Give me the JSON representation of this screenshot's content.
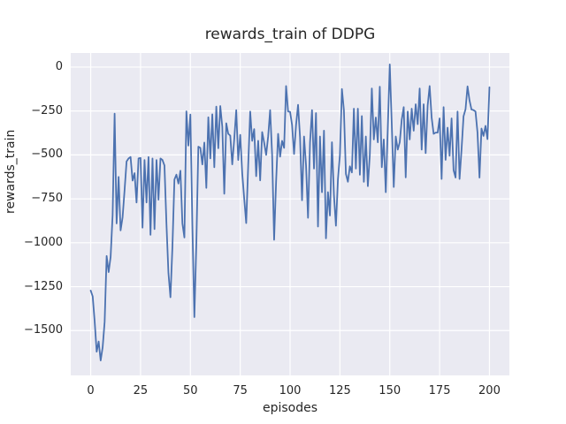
{
  "chart_data": {
    "type": "line",
    "title": "rewards_train of DDPG",
    "xlabel": "episodes",
    "ylabel": "rewards_train",
    "x_start": 0,
    "x_step": 1,
    "xlim": [
      -10,
      210
    ],
    "ylim": [
      -1755,
      80
    ],
    "xticks": [
      0,
      25,
      50,
      75,
      100,
      125,
      150,
      175,
      200
    ],
    "yticks": [
      0,
      -250,
      -500,
      -750,
      -1000,
      -1250,
      -1500
    ],
    "grid": true,
    "legend": "none",
    "style": {
      "line_color": "#4C72B0",
      "plot_bg": "#EAEAF2",
      "grid_color": "#FFFFFF",
      "text_color": "#262626",
      "fig_bg": "#FFFFFF"
    },
    "series": [
      {
        "name": "rewards_train",
        "color": "#4C72B0",
        "values": [
          -1272,
          -1305,
          -1448,
          -1620,
          -1562,
          -1670,
          -1595,
          -1450,
          -1075,
          -1167,
          -1080,
          -842,
          -265,
          -890,
          -625,
          -930,
          -855,
          -700,
          -537,
          -520,
          -512,
          -646,
          -604,
          -771,
          -520,
          -517,
          -914,
          -529,
          -771,
          -512,
          -955,
          -520,
          -922,
          -529,
          -755,
          -520,
          -529,
          -560,
          -892,
          -1173,
          -1310,
          -1022,
          -640,
          -612,
          -663,
          -590,
          -890,
          -970,
          -252,
          -447,
          -270,
          -900,
          -1423,
          -1000,
          -453,
          -460,
          -554,
          -430,
          -688,
          -286,
          -520,
          -269,
          -570,
          -225,
          -462,
          -222,
          -340,
          -721,
          -320,
          -380,
          -390,
          -554,
          -410,
          -245,
          -529,
          -386,
          -604,
          -750,
          -888,
          -560,
          -253,
          -420,
          -353,
          -621,
          -420,
          -645,
          -370,
          -430,
          -500,
          -395,
          -245,
          -500,
          -983,
          -650,
          -380,
          -510,
          -420,
          -460,
          -108,
          -253,
          -255,
          -330,
          -495,
          -330,
          -215,
          -400,
          -758,
          -395,
          -560,
          -858,
          -430,
          -245,
          -578,
          -262,
          -908,
          -395,
          -712,
          -362,
          -975,
          -712,
          -845,
          -428,
          -728,
          -903,
          -640,
          -500,
          -125,
          -245,
          -608,
          -653,
          -565,
          -600,
          -237,
          -578,
          -237,
          -613,
          -279,
          -653,
          -395,
          -678,
          -500,
          -122,
          -412,
          -287,
          -428,
          -112,
          -570,
          -412,
          -712,
          -350,
          15,
          -325,
          -683,
          -395,
          -470,
          -428,
          -300,
          -228,
          -628,
          -253,
          -412,
          -237,
          -362,
          -212,
          -325,
          -122,
          -470,
          -212,
          -490,
          -220,
          -108,
          -287,
          -380,
          -373,
          -373,
          -292,
          -637,
          -228,
          -528,
          -345,
          -505,
          -292,
          -587,
          -629,
          -253,
          -637,
          -470,
          -280,
          -240,
          -110,
          -190,
          -242,
          -245,
          -253,
          -373,
          -629,
          -350,
          -392,
          -335,
          -410,
          -115
        ]
      }
    ]
  }
}
